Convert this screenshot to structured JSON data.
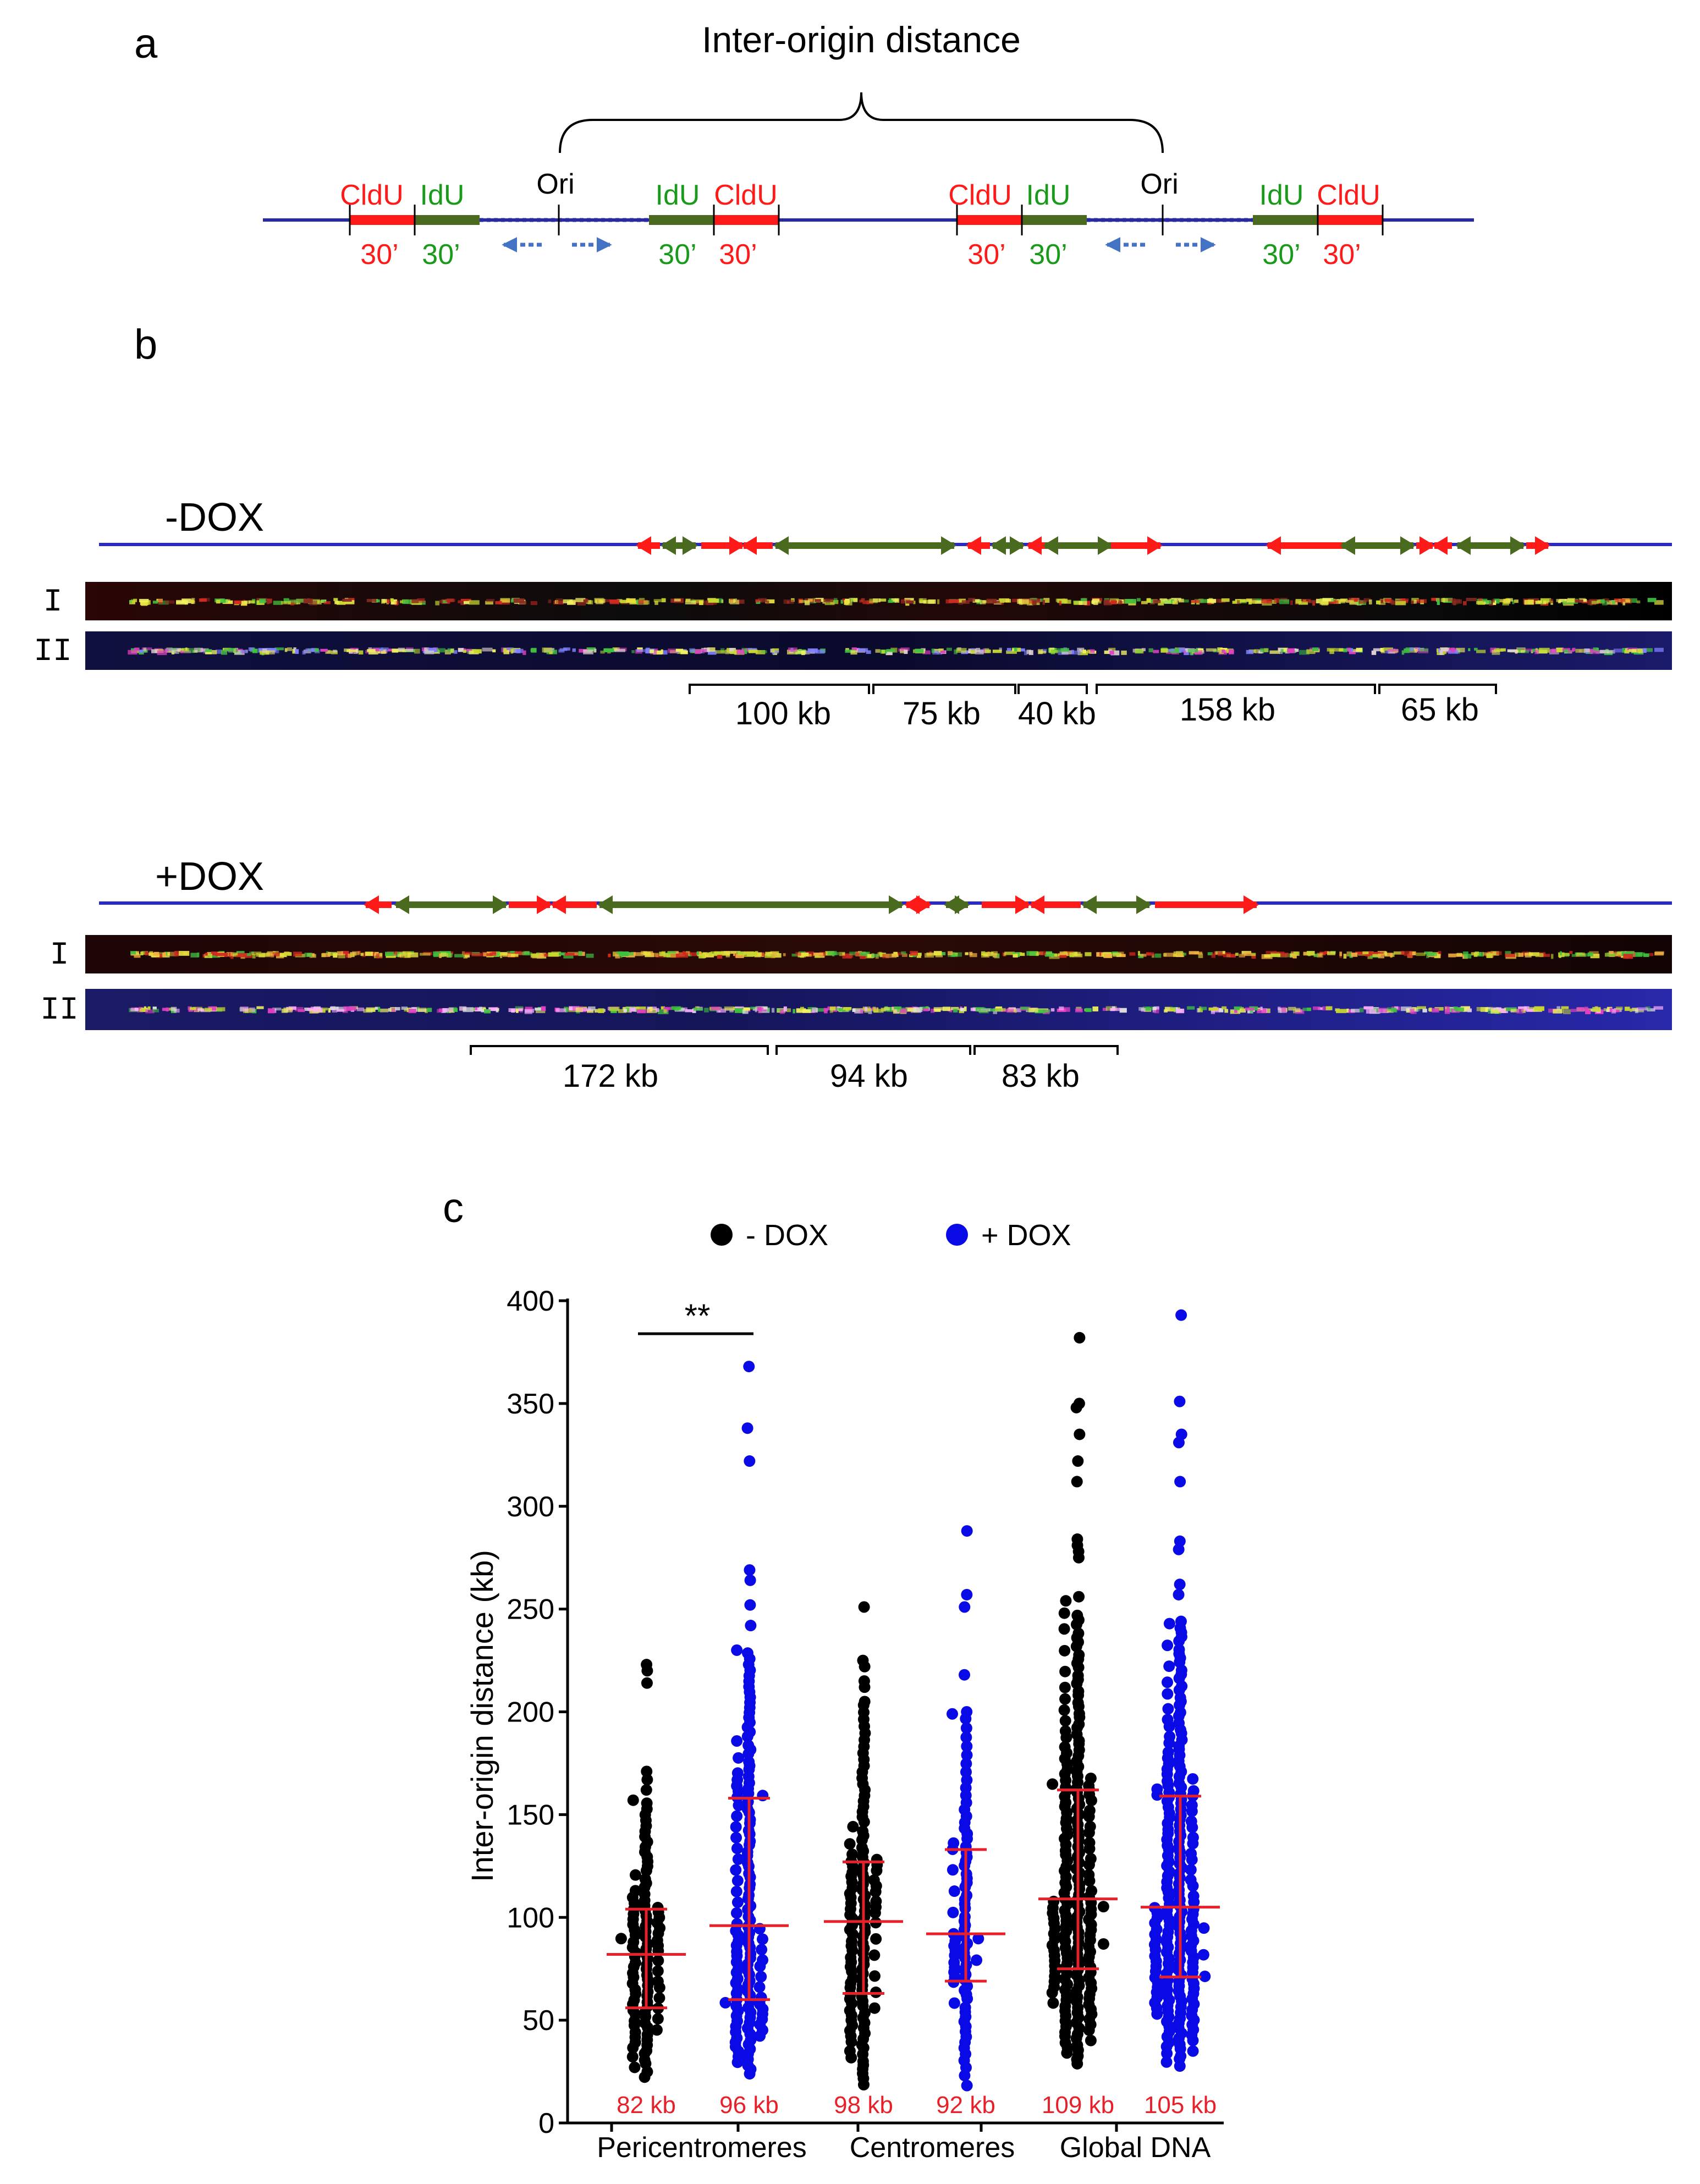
{
  "panel_a": {
    "label": "a",
    "title": "Inter-origin distance",
    "ori_label": "Ori",
    "cldu": "CldU",
    "idu": "IdU",
    "time": "30’",
    "colors": {
      "cldu": "#ff1a1a",
      "idu": "#1a9a1a",
      "fiber": "#2929a6",
      "fork": "#4472c4"
    }
  },
  "panel_b": {
    "label": "b",
    "minus_dox": {
      "title": "-DOX",
      "row1": "I",
      "row2": "II",
      "distances": [
        "100 kb",
        "75 kb",
        "40 kb",
        "158 kb",
        "65 kb"
      ]
    },
    "plus_dox": {
      "title": "+DOX",
      "row1": "I",
      "row2": "II",
      "distances": [
        "172 kb",
        "94 kb",
        "83 kb"
      ]
    },
    "colors": {
      "red": "#ff1a1a",
      "green": "#4a6b1f",
      "fiber": "#2929c8"
    }
  },
  "chart_data": {
    "label": "c",
    "type": "scatter",
    "subtype": "dot-plot",
    "ylabel": "Inter-origin distance (kb)",
    "ylim": [
      0,
      400
    ],
    "yticks": [
      0,
      50,
      100,
      150,
      200,
      250,
      300,
      350,
      400
    ],
    "legend": [
      {
        "name": "- DOX",
        "color": "#000000"
      },
      {
        "name": "+ DOX",
        "color": "#0a0ae6"
      }
    ],
    "groups": [
      "Pericentromeres",
      "Centromeres",
      "Global DNA"
    ],
    "significance": {
      "label": "**",
      "between": [
        0,
        1
      ]
    },
    "errorbar_color": "#e8202a",
    "columns": [
      {
        "group": "Pericentromeres",
        "condition": "- DOX",
        "color": "#000000",
        "median": 82,
        "q1": 56,
        "q3": 104,
        "median_label": "82 kb",
        "n": 110,
        "min": 20,
        "max": 223,
        "outliers": [
          223,
          220,
          214,
          171,
          167,
          162,
          157
        ]
      },
      {
        "group": "Pericentromeres",
        "condition": "+ DOX",
        "color": "#0a0ae6",
        "median": 96,
        "q1": 60,
        "q3": 158,
        "median_label": "96 kb",
        "n": 150,
        "min": 22,
        "max": 368,
        "outliers": [
          368,
          338,
          322,
          269,
          264,
          252,
          242,
          230
        ]
      },
      {
        "group": "Centromeres",
        "condition": "- DOX",
        "color": "#000000",
        "median": 98,
        "q1": 63,
        "q3": 127,
        "median_label": "98 kb",
        "n": 130,
        "min": 16,
        "max": 251,
        "outliers": [
          251,
          225,
          222,
          215,
          212,
          205
        ]
      },
      {
        "group": "Centromeres",
        "condition": "+ DOX",
        "color": "#0a0ae6",
        "median": 92,
        "q1": 69,
        "q3": 133,
        "median_label": "92 kb",
        "n": 85,
        "min": 14,
        "max": 288,
        "outliers": [
          288,
          257,
          251,
          218,
          200,
          199
        ]
      },
      {
        "group": "Global DNA",
        "condition": "- DOX",
        "color": "#000000",
        "median": 109,
        "q1": 75,
        "q3": 162,
        "median_label": "109 kb",
        "n": 230,
        "min": 27,
        "max": 382,
        "outliers": [
          382,
          350,
          348,
          335,
          322,
          312,
          284,
          281,
          278,
          275,
          256,
          254,
          248
        ]
      },
      {
        "group": "Global DNA",
        "condition": "+ DOX",
        "color": "#0a0ae6",
        "median": 105,
        "q1": 71,
        "q3": 159,
        "median_label": "105 kb",
        "n": 230,
        "min": 26,
        "max": 393,
        "outliers": [
          393,
          351,
          335,
          331,
          312,
          283,
          279,
          262,
          257,
          244
        ]
      }
    ]
  }
}
